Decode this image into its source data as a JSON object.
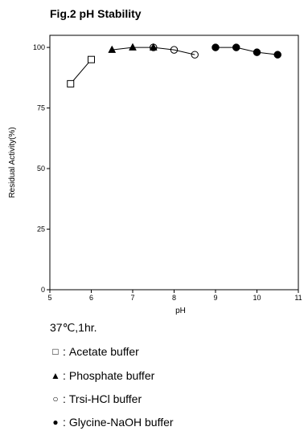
{
  "title": "Fig.2 pH Stability",
  "note": "37℃,1hr.",
  "legend": [
    {
      "series": "acetate",
      "symbol": "□",
      "symbol_name": "open-square",
      "label": "Acetate buffer"
    },
    {
      "series": "phosphate",
      "symbol": "▲",
      "symbol_name": "filled-triangle",
      "label": "Phosphate buffer"
    },
    {
      "series": "tris",
      "symbol": "○",
      "symbol_name": "open-circle",
      "label": "Trsi-HCl buffer"
    },
    {
      "series": "glycine",
      "symbol": "●",
      "symbol_name": "filled-circle",
      "label": "Glycine-NaOH buffer"
    }
  ],
  "chart_data": {
    "type": "line",
    "title": "Fig.2 pH Stability",
    "xlabel": "pH",
    "ylabel": "Residual Activity(%)",
    "xlim": [
      5,
      11
    ],
    "ylim": [
      0,
      105
    ],
    "xticks": [
      "5",
      "6",
      "7",
      "8",
      "9",
      "10",
      "11"
    ],
    "yticks": [
      "0",
      "25",
      "50",
      "75",
      "100"
    ],
    "grid": false,
    "series": [
      {
        "id": "acetate",
        "marker": "open-square",
        "color": "#000000",
        "points": [
          {
            "x": 5.5,
            "y": 85
          },
          {
            "x": 6.0,
            "y": 95
          }
        ]
      },
      {
        "id": "phosphate",
        "marker": "filled-triangle",
        "color": "#000000",
        "points": [
          {
            "x": 6.5,
            "y": 99
          },
          {
            "x": 7.0,
            "y": 100
          },
          {
            "x": 7.5,
            "y": 100
          }
        ]
      },
      {
        "id": "tris",
        "marker": "open-circle",
        "color": "#000000",
        "points": [
          {
            "x": 7.5,
            "y": 100
          },
          {
            "x": 8.0,
            "y": 99
          },
          {
            "x": 8.5,
            "y": 97
          }
        ]
      },
      {
        "id": "glycine",
        "marker": "filled-circle",
        "color": "#000000",
        "points": [
          {
            "x": 9.0,
            "y": 100
          },
          {
            "x": 9.5,
            "y": 100
          },
          {
            "x": 10.0,
            "y": 98
          },
          {
            "x": 10.5,
            "y": 97
          }
        ]
      }
    ]
  }
}
